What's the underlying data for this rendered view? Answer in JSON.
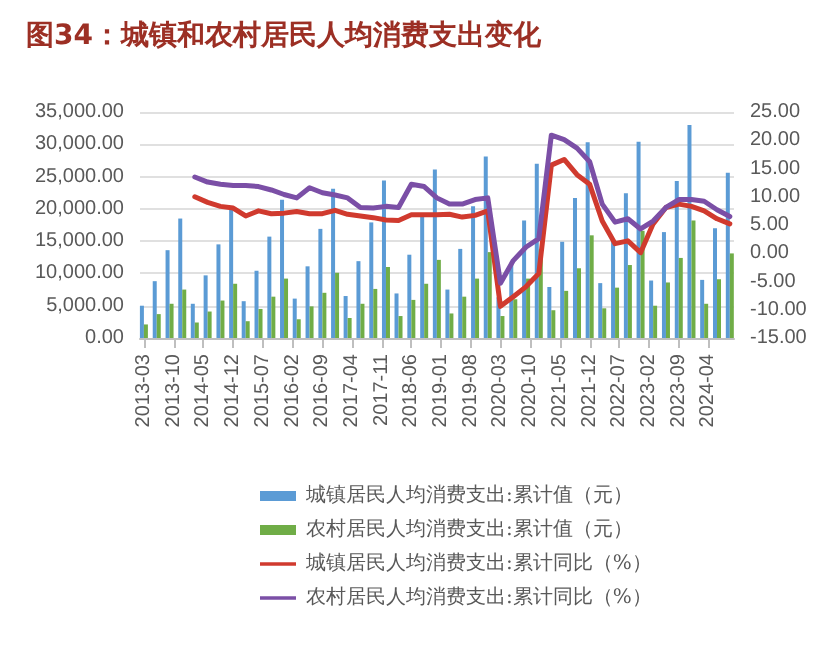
{
  "chart_data": {
    "type": "bar",
    "title": "图34：城镇和农村居民人均消费支出变化",
    "x": [
      "2013-03",
      "2013-06",
      "2013-09",
      "2013-12",
      "2014-03",
      "2014-06",
      "2014-09",
      "2014-12",
      "2015-03",
      "2015-06",
      "2015-09",
      "2015-12",
      "2016-03",
      "2016-06",
      "2016-09",
      "2016-12",
      "2017-03",
      "2017-06",
      "2017-09",
      "2017-12",
      "2018-03",
      "2018-06",
      "2018-09",
      "2018-12",
      "2019-03",
      "2019-06",
      "2019-09",
      "2019-12",
      "2020-03",
      "2020-06",
      "2020-09",
      "2020-12",
      "2021-03",
      "2021-06",
      "2021-09",
      "2021-12",
      "2022-03",
      "2022-06",
      "2022-09",
      "2022-12",
      "2023-03",
      "2023-06",
      "2023-09",
      "2023-12",
      "2024-03",
      "2024-06",
      "2024-09"
    ],
    "series": [
      {
        "name": "城镇居民人均消费支出:累计值（元）",
        "color": "#5b9bd5",
        "values": [
          5000,
          8800,
          13600,
          18500,
          5300,
          9700,
          14500,
          20000,
          5700,
          10400,
          15700,
          21400,
          6100,
          11100,
          16900,
          23100,
          6500,
          11900,
          17900,
          24400,
          6900,
          12900,
          19100,
          26100,
          7500,
          13800,
          20400,
          28100,
          6300,
          11600,
          18200,
          27000,
          7900,
          14900,
          21700,
          30300,
          8500,
          15000,
          22400,
          30400,
          8900,
          16400,
          24300,
          33000,
          9000,
          17000,
          25600
        ]
      },
      {
        "name": "农村居民人均消费支出:累计值（元）",
        "color": "#70ad47",
        "values": [
          2100,
          3700,
          5300,
          7500,
          2400,
          4100,
          5800,
          8400,
          2600,
          4500,
          6400,
          9200,
          2900,
          4900,
          7000,
          10100,
          3100,
          5300,
          7600,
          11000,
          3400,
          5900,
          8400,
          12100,
          3800,
          6400,
          9200,
          13300,
          3400,
          6000,
          9200,
          13700,
          4300,
          7300,
          10800,
          15900,
          4600,
          7800,
          11300,
          16600,
          5000,
          8600,
          12400,
          18200,
          5300,
          9100,
          13100
        ]
      },
      {
        "name": "城镇居民人均消费支出:累计同比（%）",
        "type": "line",
        "axis": "y2",
        "color": "#d03a2e",
        "values": [
          null,
          null,
          null,
          null,
          10.0,
          9.0,
          8.3,
          8.0,
          6.6,
          7.5,
          7.0,
          7.1,
          7.4,
          7.0,
          7.0,
          7.6,
          6.9,
          6.6,
          6.3,
          5.9,
          5.8,
          6.8,
          6.8,
          6.8,
          6.9,
          6.4,
          6.7,
          7.5,
          -9.4,
          -7.7,
          -5.9,
          -3.6,
          15.6,
          16.6,
          13.9,
          12.2,
          5.7,
          1.7,
          2.2,
          0.1,
          5.2,
          8.1,
          8.7,
          8.3,
          7.5,
          6.1,
          5.2
        ]
      },
      {
        "name": "农村居民人均消费支出:累计同比（%）",
        "type": "line",
        "axis": "y2",
        "color": "#7b4fa6",
        "values": [
          null,
          null,
          null,
          null,
          13.5,
          12.6,
          12.2,
          12.0,
          12.0,
          11.8,
          11.2,
          10.4,
          9.8,
          11.6,
          10.7,
          10.3,
          9.8,
          8.1,
          8.0,
          8.3,
          8.1,
          12.2,
          11.8,
          9.8,
          8.7,
          8.7,
          9.5,
          9.8,
          -5.3,
          -1.3,
          1.1,
          2.6,
          20.9,
          20.1,
          18.6,
          16.2,
          8.7,
          5.5,
          6.1,
          4.3,
          5.7,
          8.1,
          9.5,
          9.5,
          9.2,
          7.7,
          6.5
        ]
      }
    ],
    "xlim": [
      "2013-02",
      "2024-10"
    ],
    "xticks": [
      "2013-03",
      "2013-10",
      "2014-05",
      "2014-12",
      "2015-07",
      "2016-02",
      "2016-09",
      "2017-04",
      "2017-11",
      "2018-06",
      "2019-01",
      "2019-08",
      "2020-03",
      "2020-10",
      "2021-05",
      "2021-12",
      "2022-07",
      "2023-02",
      "2023-09",
      "2024-04"
    ],
    "ylim": [
      0,
      35000
    ],
    "yticks": [
      {
        "value": 0,
        "label": "0.00"
      },
      {
        "value": 5000,
        "label": "5,000.00"
      },
      {
        "value": 10000,
        "label": "10,000.00"
      },
      {
        "value": 15000,
        "label": "15,000.00"
      },
      {
        "value": 20000,
        "label": "20,000.00"
      },
      {
        "value": 25000,
        "label": "25,000.00"
      },
      {
        "value": 30000,
        "label": "30,000.00"
      },
      {
        "value": 35000,
        "label": "35,000.00"
      }
    ],
    "y2lim": [
      -15,
      25
    ],
    "y2ticks": [
      {
        "value": -15,
        "label": "-15.00"
      },
      {
        "value": -10,
        "label": "-10.00"
      },
      {
        "value": -5,
        "label": "-5.00"
      },
      {
        "value": 0,
        "label": "0.00"
      },
      {
        "value": 5,
        "label": "5.00"
      },
      {
        "value": 10,
        "label": "10.00"
      },
      {
        "value": 15,
        "label": "15.00"
      },
      {
        "value": 20,
        "label": "20.00"
      },
      {
        "value": 25,
        "label": "25.00"
      }
    ],
    "grid": "y",
    "legend": "bottom",
    "marker": "none",
    "line_style": "solid"
  }
}
